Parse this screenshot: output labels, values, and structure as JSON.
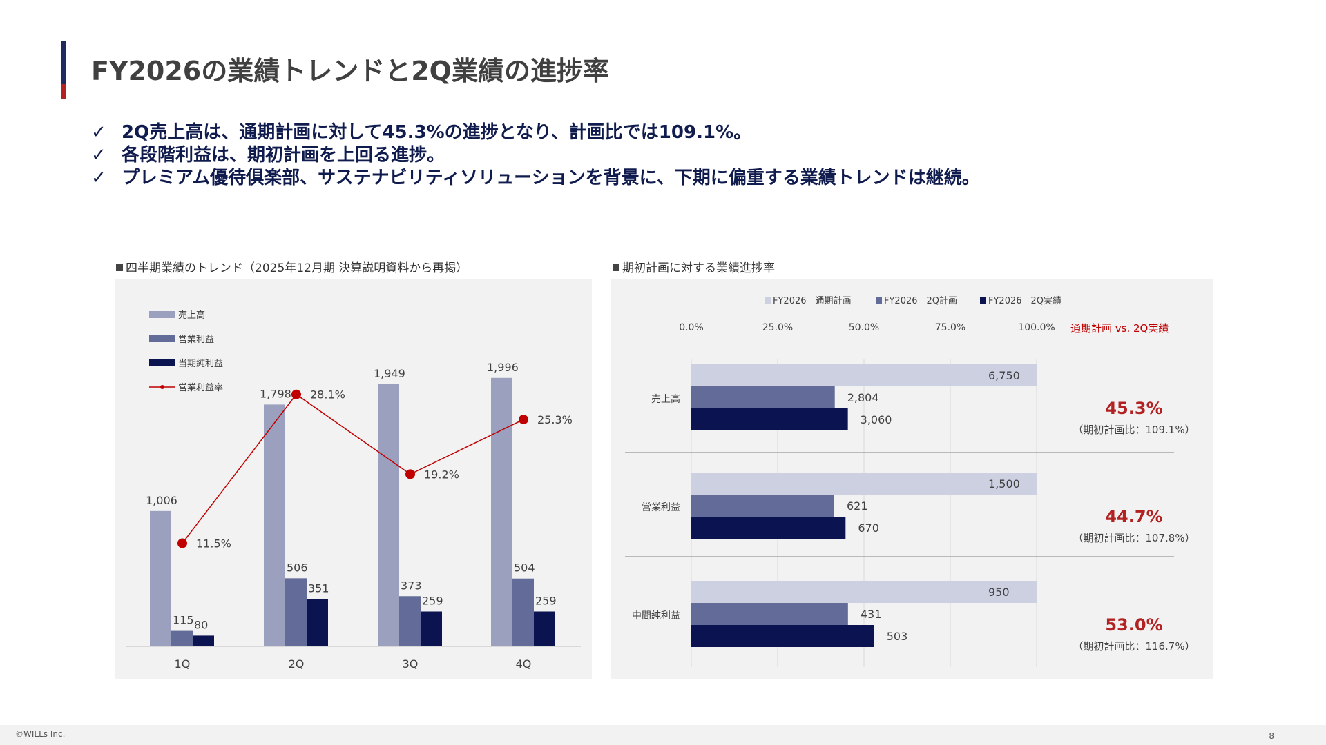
{
  "page": {
    "title": "FY2026の業績トレンドと2Q業績の進捗率",
    "bullets": [
      "2Q売上高は、通期計画に対して45.3%の進捗となり、計画比では109.1%。",
      "各段階利益は、期初計画を上回る進捗。",
      "プレミアム優待倶楽部、サステナビリティソリューションを背景に、下期に偏重する業績トレンドは継続。"
    ],
    "check_icon": "✓",
    "colors": {
      "navy": "#1f2a5e",
      "red": "#b22222",
      "text": "#111c4e"
    }
  },
  "footer": {
    "copyright": "©WILLs Inc.",
    "page_number": "8"
  },
  "chart_data": [
    {
      "type": "bar",
      "title": "四半期業績のトレンド（2025年12月期 決算説明資料から再掲）",
      "categories": [
        "1Q",
        "2Q",
        "3Q",
        "4Q"
      ],
      "series": [
        {
          "name": "売上高",
          "values": [
            1006,
            1798,
            1949,
            1996
          ],
          "labels": [
            "1,006",
            "1,798",
            "1,949",
            "1,996"
          ],
          "color": "#9aa0bd"
        },
        {
          "name": "営業利益",
          "values": [
            115,
            506,
            373,
            504
          ],
          "labels": [
            "115",
            "506",
            "373",
            "504"
          ],
          "color": "#636c98"
        },
        {
          "name": "当期純利益",
          "values": [
            80,
            351,
            259,
            259
          ],
          "labels": [
            "80",
            "351",
            "259",
            "259"
          ],
          "color": "#0b1450"
        }
      ],
      "line_series": {
        "name": "営業利益率",
        "values": [
          11.5,
          28.1,
          19.2,
          25.3
        ],
        "labels": [
          "11.5%",
          "28.1%",
          "19.2%",
          "25.3%"
        ],
        "color": "#c00000"
      },
      "ylim": [
        0,
        2000
      ],
      "line_ylim": [
        0,
        30
      ],
      "legend": "top-left",
      "grid": false
    },
    {
      "type": "bar",
      "orientation": "horizontal",
      "title": "期初計画に対する業績進捗率",
      "categories": [
        "売上高",
        "営業利益",
        "中間純利益"
      ],
      "series": [
        {
          "name": "FY2026　通期計画",
          "values": [
            6750,
            1500,
            950
          ],
          "labels": [
            "6,750",
            "1,500",
            "950"
          ],
          "color": "#cdd0e1"
        },
        {
          "name": "FY2026　2Q計画",
          "values": [
            2804,
            621,
            431
          ],
          "labels": [
            "2,804",
            "621",
            "431"
          ],
          "color": "#636c98"
        },
        {
          "name": "FY2026　2Q実績",
          "values": [
            3060,
            670,
            503
          ],
          "labels": [
            "3,060",
            "670",
            "503"
          ],
          "color": "#0b1450"
        }
      ],
      "progress_pct": [
        45.3,
        44.7,
        53.0
      ],
      "axis_ticks": [
        "0.0%",
        "25.0%",
        "50.0%",
        "75.0%",
        "100.0%"
      ],
      "xlim": [
        0,
        100
      ],
      "progress_header": "通期計画 vs. 2Q実績",
      "progress_labels": [
        "45.3%",
        "44.7%",
        "53.0%"
      ],
      "progress_notes": [
        "（期初計画比：109.1%）",
        "（期初計画比：107.8%）",
        "（期初計画比：116.7%）"
      ],
      "legend": "top",
      "grid": true
    }
  ]
}
